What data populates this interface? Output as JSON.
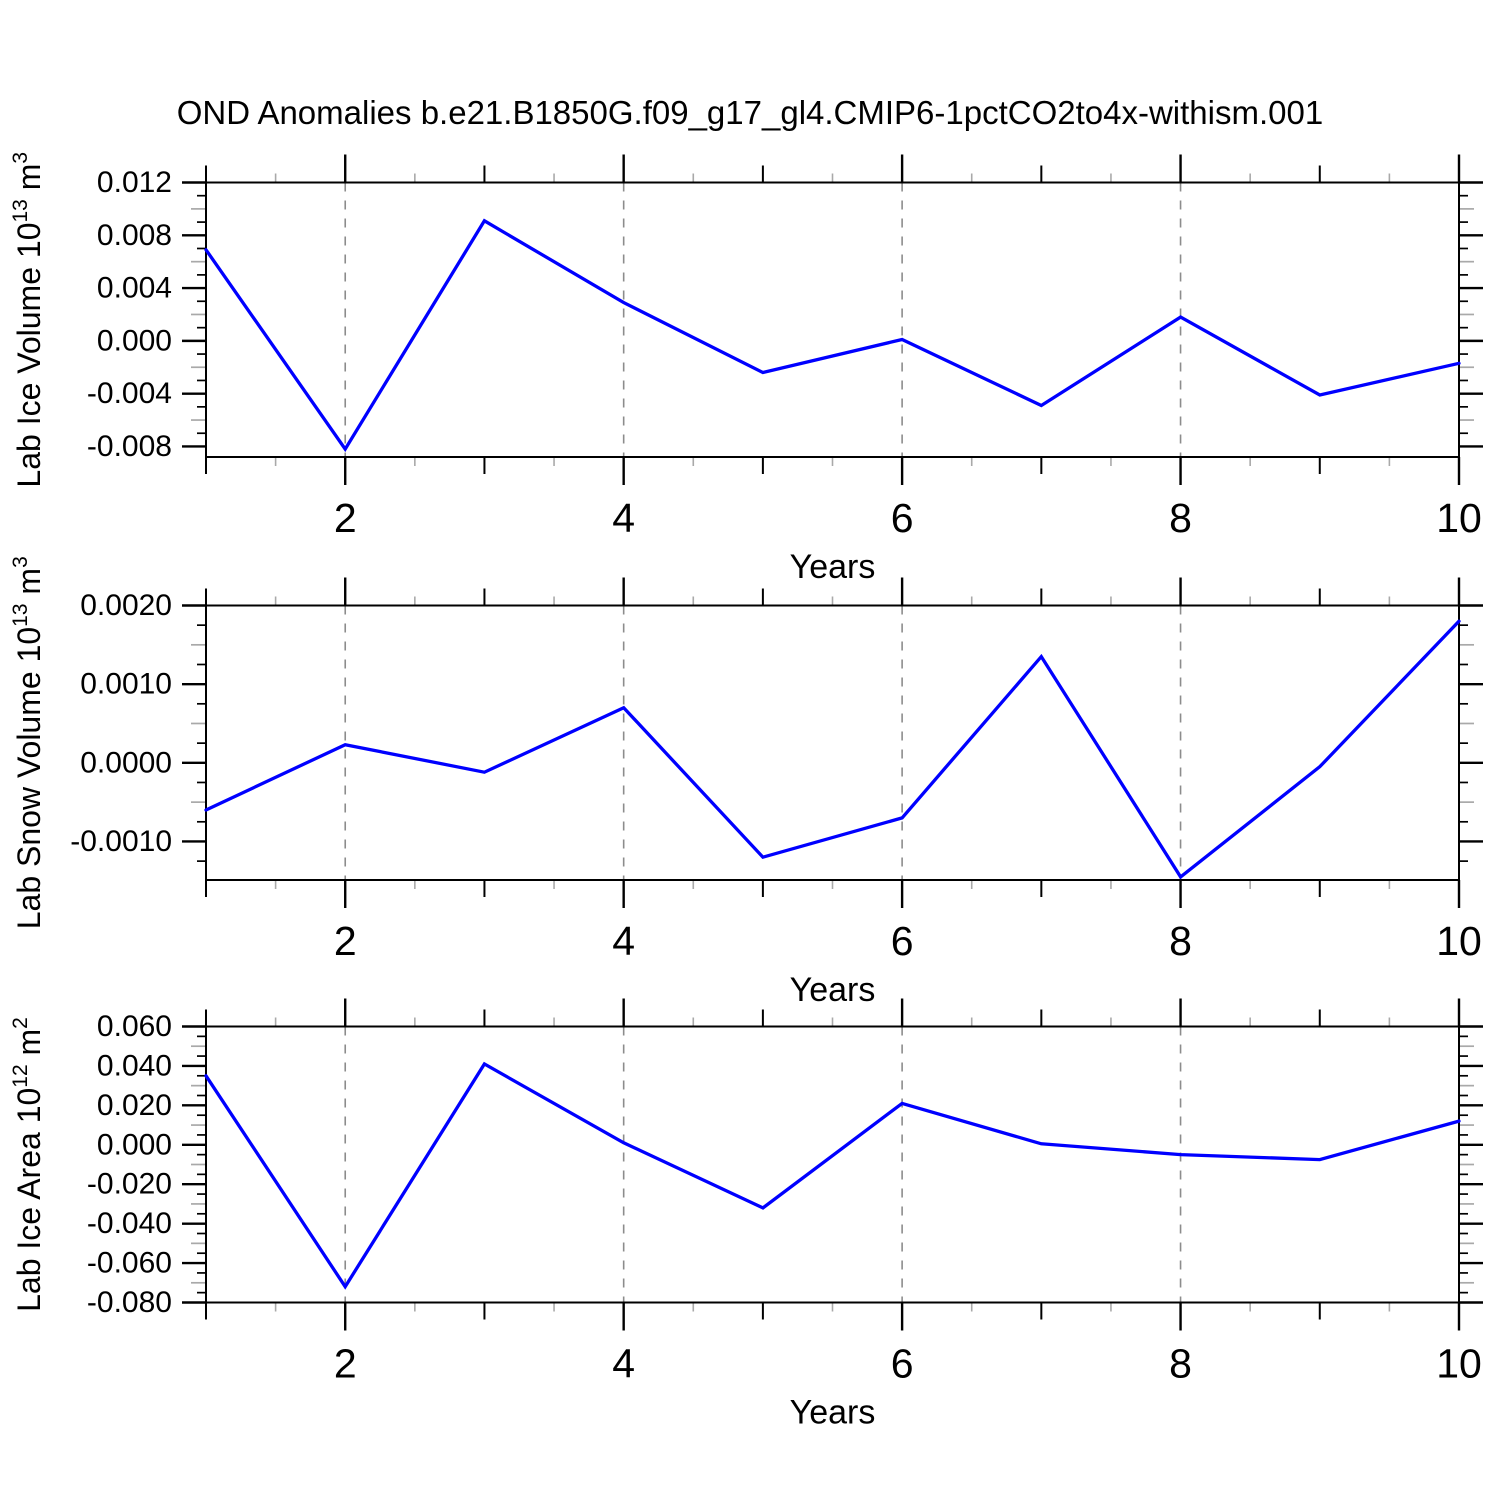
{
  "title": "OND Anomalies b.e21.B1850G.f09_g17_gl4.CMIP6-1pctCO2to4x-withism.001",
  "colors": {
    "line": "#0000ff",
    "grid": "#8c8c8c",
    "axis": "#000000",
    "minor_tick": "#a9a9a9",
    "text": "#000000"
  },
  "chart_data": [
    {
      "type": "line",
      "ylabel": "Lab Ice Volume 10^13 m^3",
      "ylabel_parts": [
        {
          "t": "Lab Ice Volume 10"
        },
        {
          "sup": "13"
        },
        {
          "t": " m"
        },
        {
          "sup": "3"
        }
      ],
      "xlabel": "Years",
      "x": [
        1,
        2,
        3,
        4,
        5,
        6,
        7,
        8,
        9,
        10
      ],
      "values": [
        0.0069,
        -0.0082,
        0.0091,
        0.0029,
        -0.0024,
        0.0001,
        -0.0049,
        0.0018,
        -0.0041,
        -0.0017
      ],
      "xlim": [
        1,
        10
      ],
      "ylim": [
        -0.0088,
        0.012
      ],
      "xtick_labeled": [
        2,
        4,
        6,
        8,
        10
      ],
      "xtick_labels": [
        "2",
        "4",
        "6",
        "8",
        "10"
      ],
      "grid_x": [
        2,
        4,
        6,
        8
      ],
      "ytick_top": 0.012,
      "ytick_minor_step": 0.001,
      "ytick_labels": [
        "0.012",
        "0.008",
        "0.004",
        "0.000",
        "-0.004",
        "-0.008"
      ],
      "ytick_values": [
        0.012,
        0.008,
        0.004,
        0.0,
        -0.004,
        -0.008
      ]
    },
    {
      "type": "line",
      "ylabel": "Lab Snow Volume 10^13 m^3",
      "ylabel_parts": [
        {
          "t": "Lab Snow Volume 10"
        },
        {
          "sup": "13"
        },
        {
          "t": " m"
        },
        {
          "sup": "3"
        }
      ],
      "xlabel": "Years",
      "x": [
        1,
        2,
        3,
        4,
        5,
        6,
        7,
        8,
        9,
        10
      ],
      "values": [
        -0.0006,
        0.00023,
        -0.00012,
        0.0007,
        -0.0012,
        -0.0007,
        0.00135,
        -0.00145,
        -5e-05,
        0.0018
      ],
      "xlim": [
        1,
        10
      ],
      "ylim": [
        -0.00149,
        0.002
      ],
      "xtick_labeled": [
        2,
        4,
        6,
        8,
        10
      ],
      "xtick_labels": [
        "2",
        "4",
        "6",
        "8",
        "10"
      ],
      "grid_x": [
        2,
        4,
        6,
        8
      ],
      "ytick_top": 0.002,
      "ytick_minor_step": 0.00025,
      "ytick_labels": [
        "0.0020",
        "0.0010",
        "0.0000",
        "-0.0010"
      ],
      "ytick_values": [
        0.002,
        0.001,
        0.0,
        -0.001
      ]
    },
    {
      "type": "line",
      "ylabel": "Lab Ice Area 10^12 m^2",
      "ylabel_parts": [
        {
          "t": "Lab Ice Area 10"
        },
        {
          "sup": "12"
        },
        {
          "t": " m"
        },
        {
          "sup": "2"
        }
      ],
      "xlabel": "Years",
      "x": [
        1,
        2,
        3,
        4,
        5,
        6,
        7,
        8,
        9,
        10
      ],
      "values": [
        0.035,
        -0.072,
        0.041,
        0.001,
        -0.032,
        0.021,
        0.0005,
        -0.005,
        -0.0075,
        0.012
      ],
      "xlim": [
        1,
        10
      ],
      "ylim": [
        -0.08,
        0.06
      ],
      "xtick_labeled": [
        2,
        4,
        6,
        8,
        10
      ],
      "xtick_labels": [
        "2",
        "4",
        "6",
        "8",
        "10"
      ],
      "grid_x": [
        2,
        4,
        6,
        8
      ],
      "ytick_top": 0.06,
      "ytick_minor_step": 0.005,
      "ytick_labels": [
        "0.060",
        "0.040",
        "0.020",
        "0.000",
        "-0.020",
        "-0.040",
        "-0.060",
        "-0.080"
      ],
      "ytick_values": [
        0.06,
        0.04,
        0.02,
        0.0,
        -0.02,
        -0.04,
        -0.06,
        -0.08
      ]
    }
  ]
}
